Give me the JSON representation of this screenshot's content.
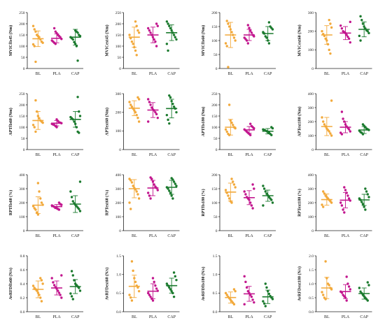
{
  "colors": {
    "BL": "#f2a93b",
    "PLA": "#c2168e",
    "CAP": "#1b7a2e"
  },
  "chart_data": [
    {
      "type": "scatter",
      "ylabel": "MVICfIs45 (Nm)",
      "ylim": [
        0,
        250
      ],
      "yticks": [
        "0",
        "50",
        "100",
        "150",
        "200",
        "250"
      ],
      "categories": [
        "BL",
        "PLA",
        "CAP"
      ],
      "series": [
        {
          "name": "BL",
          "mean": 133,
          "sd": 35,
          "values": [
            190,
            175,
            165,
            150,
            145,
            140,
            130,
            120,
            115,
            108,
            100,
            30
          ]
        },
        {
          "name": "PLA",
          "mean": 135,
          "sd": 20,
          "values": [
            180,
            165,
            158,
            150,
            145,
            140,
            132,
            125,
            120,
            115,
            110
          ]
        },
        {
          "name": "CAP",
          "mean": 140,
          "sd": 35,
          "values": [
            170,
            165,
            160,
            150,
            145,
            140,
            135,
            130,
            118,
            110,
            100,
            35
          ]
        }
      ]
    },
    {
      "type": "scatter",
      "ylabel": "MVICext45 (Nm)",
      "ylim": [
        0,
        250
      ],
      "yticks": [
        "0",
        "50",
        "100",
        "150",
        "200",
        "250"
      ],
      "categories": [
        "BL",
        "PLA",
        "CAP"
      ],
      "series": [
        {
          "name": "BL",
          "mean": 140,
          "sd": 45,
          "values": [
            210,
            190,
            170,
            160,
            150,
            135,
            120,
            110,
            95,
            80,
            60
          ]
        },
        {
          "name": "PLA",
          "mean": 150,
          "sd": 35,
          "values": [
            200,
            190,
            180,
            170,
            160,
            150,
            140,
            130,
            120,
            100
          ]
        },
        {
          "name": "CAP",
          "mean": 160,
          "sd": 35,
          "values": [
            210,
            200,
            190,
            180,
            170,
            160,
            150,
            140,
            130,
            110,
            80
          ]
        }
      ]
    },
    {
      "type": "scatter",
      "ylabel": "MVICfIs60 (Nm)",
      "ylim": [
        0,
        200
      ],
      "yticks": [
        "0",
        "50",
        "100",
        "150",
        "200"
      ],
      "categories": [
        "BL",
        "PLA",
        "CAP"
      ],
      "series": [
        {
          "name": "BL",
          "mean": 120,
          "sd": 45,
          "values": [
            170,
            160,
            150,
            140,
            130,
            120,
            110,
            100,
            90,
            80,
            5
          ]
        },
        {
          "name": "PLA",
          "mean": 120,
          "sd": 20,
          "values": [
            155,
            145,
            135,
            128,
            120,
            115,
            110,
            105,
            100,
            90
          ]
        },
        {
          "name": "CAP",
          "mean": 125,
          "sd": 25,
          "values": [
            165,
            150,
            145,
            140,
            130,
            125,
            115,
            110,
            100,
            90
          ]
        }
      ]
    },
    {
      "type": "scatter",
      "ylabel": "MVICext60 (Nm)",
      "ylim": [
        0,
        300
      ],
      "yticks": [
        "0",
        "100",
        "200",
        "300"
      ],
      "categories": [
        "BL",
        "PLA",
        "CAP"
      ],
      "series": [
        {
          "name": "BL",
          "mean": 180,
          "sd": 50,
          "values": [
            260,
            240,
            220,
            200,
            185,
            175,
            160,
            150,
            130,
            100,
            80
          ]
        },
        {
          "name": "PLA",
          "mean": 190,
          "sd": 35,
          "values": [
            250,
            230,
            215,
            200,
            195,
            190,
            180,
            170,
            160,
            140
          ]
        },
        {
          "name": "CAP",
          "mean": 210,
          "sd": 40,
          "values": [
            280,
            260,
            240,
            225,
            215,
            205,
            200,
            190,
            175,
            150
          ]
        }
      ]
    },
    {
      "type": "scatter",
      "ylabel": "APTfIs60 (Nm)",
      "ylim": [
        0,
        250
      ],
      "yticks": [
        "0",
        "50",
        "100",
        "150",
        "200",
        "250"
      ],
      "categories": [
        "BL",
        "PLA",
        "CAP"
      ],
      "series": [
        {
          "name": "BL",
          "mean": 130,
          "sd": 40,
          "values": [
            220,
            170,
            150,
            140,
            130,
            125,
            120,
            110,
            100,
            80
          ]
        },
        {
          "name": "PLA",
          "mean": 118,
          "sd": 12,
          "values": [
            135,
            128,
            122,
            120,
            118,
            115,
            112,
            110,
            105,
            100
          ]
        },
        {
          "name": "CAP",
          "mean": 135,
          "sd": 35,
          "values": [
            235,
            170,
            150,
            145,
            140,
            135,
            125,
            115,
            100,
            80,
            75
          ]
        }
      ]
    },
    {
      "type": "scatter",
      "ylabel": "APText60 (Nm)",
      "ylim": [
        0,
        300
      ],
      "yticks": [
        "0",
        "100",
        "200",
        "300"
      ],
      "categories": [
        "BL",
        "PLA",
        "CAP"
      ],
      "series": [
        {
          "name": "BL",
          "mean": 222,
          "sd": 40,
          "values": [
            280,
            270,
            255,
            240,
            230,
            220,
            210,
            200,
            185,
            170,
            150
          ]
        },
        {
          "name": "PLA",
          "mean": 212,
          "sd": 40,
          "values": [
            270,
            255,
            240,
            225,
            215,
            210,
            200,
            190,
            170,
            150
          ]
        },
        {
          "name": "CAP",
          "mean": 220,
          "sd": 50,
          "values": [
            290,
            280,
            260,
            245,
            230,
            220,
            200,
            185,
            160,
            140
          ]
        }
      ]
    },
    {
      "type": "scatter",
      "ylabel": "APTfIs180 (Nm)",
      "ylim": [
        0,
        250
      ],
      "yticks": [
        "0",
        "50",
        "100",
        "150",
        "200",
        "250"
      ],
      "categories": [
        "BL",
        "PLA",
        "CAP"
      ],
      "series": [
        {
          "name": "BL",
          "mean": 100,
          "sd": 35,
          "values": [
            200,
            130,
            120,
            110,
            100,
            95,
            90,
            80,
            70,
            65
          ]
        },
        {
          "name": "PLA",
          "mean": 88,
          "sd": 15,
          "values": [
            115,
            105,
            100,
            95,
            90,
            85,
            80,
            75,
            70,
            65
          ]
        },
        {
          "name": "CAP",
          "mean": 82,
          "sd": 12,
          "values": [
            100,
            95,
            90,
            88,
            85,
            82,
            78,
            75,
            70,
            65
          ]
        }
      ]
    },
    {
      "type": "scatter",
      "ylabel": "APText180 (Nm)",
      "ylim": [
        0,
        400
      ],
      "yticks": [
        "0",
        "100",
        "200",
        "300",
        "400"
      ],
      "categories": [
        "BL",
        "PLA",
        "CAP"
      ],
      "series": [
        {
          "name": "BL",
          "mean": 165,
          "sd": 65,
          "values": [
            350,
            230,
            200,
            180,
            165,
            150,
            140,
            130,
            115,
            100
          ]
        },
        {
          "name": "PLA",
          "mean": 160,
          "sd": 40,
          "values": [
            270,
            220,
            200,
            180,
            165,
            155,
            145,
            130,
            120,
            110
          ]
        },
        {
          "name": "CAP",
          "mean": 140,
          "sd": 25,
          "values": [
            180,
            170,
            160,
            150,
            145,
            140,
            135,
            125,
            120,
            110
          ]
        }
      ]
    },
    {
      "type": "scatter",
      "ylabel": "RPTfIs60 (%)",
      "ylim": [
        0,
        400
      ],
      "yticks": [
        "0",
        "100",
        "200",
        "300",
        "400"
      ],
      "categories": [
        "BL",
        "PLA",
        "CAP"
      ],
      "series": [
        {
          "name": "BL",
          "mean": 182,
          "sd": 60,
          "values": [
            340,
            280,
            230,
            200,
            185,
            175,
            160,
            150,
            130,
            115
          ]
        },
        {
          "name": "PLA",
          "mean": 172,
          "sd": 15,
          "values": [
            200,
            190,
            185,
            180,
            175,
            170,
            165,
            160,
            155,
            150
          ]
        },
        {
          "name": "CAP",
          "mean": 190,
          "sd": 60,
          "values": [
            350,
            280,
            240,
            210,
            195,
            185,
            175,
            165,
            155,
            140
          ]
        }
      ]
    },
    {
      "type": "scatter",
      "ylabel": "RPText60 (%)",
      "ylim": [
        0,
        400
      ],
      "yticks": [
        "0",
        "100",
        "200",
        "300",
        "400"
      ],
      "categories": [
        "BL",
        "PLA",
        "CAP"
      ],
      "series": [
        {
          "name": "BL",
          "mean": 300,
          "sd": 65,
          "values": [
            370,
            360,
            345,
            320,
            305,
            295,
            280,
            260,
            230,
            200,
            155
          ]
        },
        {
          "name": "PLA",
          "mean": 305,
          "sd": 55,
          "values": [
            380,
            370,
            350,
            330,
            315,
            305,
            290,
            270,
            250,
            230
          ]
        },
        {
          "name": "CAP",
          "mean": 310,
          "sd": 50,
          "values": [
            375,
            365,
            350,
            335,
            320,
            310,
            300,
            285,
            270,
            250,
            230
          ]
        }
      ]
    },
    {
      "type": "scatter",
      "ylabel": "RPTfIs180 (%)",
      "ylim": [
        0,
        200
      ],
      "yticks": [
        "0",
        "50",
        "100",
        "150",
        "200"
      ],
      "categories": [
        "BL",
        "PLA",
        "CAP"
      ],
      "series": [
        {
          "name": "BL",
          "mean": 138,
          "sd": 32,
          "values": [
            185,
            175,
            165,
            155,
            145,
            135,
            125,
            115,
            105,
            100
          ]
        },
        {
          "name": "PLA",
          "mean": 118,
          "sd": 25,
          "values": [
            165,
            150,
            140,
            130,
            120,
            115,
            110,
            100,
            90,
            80
          ]
        },
        {
          "name": "CAP",
          "mean": 125,
          "sd": 20,
          "values": [
            160,
            150,
            140,
            132,
            126,
            120,
            115,
            110,
            100,
            90
          ]
        }
      ]
    },
    {
      "type": "scatter",
      "ylabel": "RPText180 (%)",
      "ylim": [
        0,
        400
      ],
      "yticks": [
        "0",
        "100",
        "200",
        "300",
        "400"
      ],
      "categories": [
        "BL",
        "PLA",
        "CAP"
      ],
      "series": [
        {
          "name": "BL",
          "mean": 222,
          "sd": 40,
          "values": [
            280,
            265,
            250,
            240,
            230,
            220,
            210,
            200,
            185,
            170
          ]
        },
        {
          "name": "PLA",
          "mean": 218,
          "sd": 55,
          "values": [
            310,
            290,
            270,
            250,
            230,
            215,
            200,
            180,
            150,
            130
          ]
        },
        {
          "name": "CAP",
          "mean": 220,
          "sd": 40,
          "values": [
            300,
            280,
            260,
            240,
            230,
            220,
            205,
            190,
            170,
            150
          ]
        }
      ]
    },
    {
      "type": "scatter",
      "ylabel": "AvRFDfIs60 (N/s)",
      "ylim": [
        0,
        0.8
      ],
      "yticks": [
        "0.0",
        "0.2",
        "0.4",
        "0.6",
        "0.8"
      ],
      "categories": [
        "BL",
        "PLA",
        "CAP"
      ],
      "series": [
        {
          "name": "BL",
          "mean": 0.32,
          "sd": 0.12,
          "values": [
            0.48,
            0.45,
            0.4,
            0.37,
            0.34,
            0.32,
            0.3,
            0.27,
            0.24,
            0.2,
            0.15
          ]
        },
        {
          "name": "PLA",
          "mean": 0.34,
          "sd": 0.1,
          "values": [
            0.52,
            0.48,
            0.42,
            0.38,
            0.35,
            0.33,
            0.3,
            0.27,
            0.24,
            0.2
          ]
        },
        {
          "name": "CAP",
          "mean": 0.36,
          "sd": 0.1,
          "values": [
            0.58,
            0.52,
            0.45,
            0.4,
            0.38,
            0.36,
            0.34,
            0.3,
            0.26,
            0.22,
            0.18
          ]
        }
      ]
    },
    {
      "type": "scatter",
      "ylabel": "AvRFDext60 (N/s)",
      "ylim": [
        0,
        1.5
      ],
      "yticks": [
        "0.0",
        "0.5",
        "1.0",
        "1.5"
      ],
      "categories": [
        "BL",
        "PLA",
        "CAP"
      ],
      "series": [
        {
          "name": "BL",
          "mean": 0.68,
          "sd": 0.3,
          "values": [
            1.35,
            1.1,
            0.9,
            0.8,
            0.7,
            0.65,
            0.55,
            0.45,
            0.38,
            0.3
          ]
        },
        {
          "name": "PLA",
          "mean": 0.55,
          "sd": 0.2,
          "values": [
            0.9,
            0.8,
            0.7,
            0.62,
            0.56,
            0.5,
            0.45,
            0.4,
            0.35,
            0.3
          ]
        },
        {
          "name": "CAP",
          "mean": 0.7,
          "sd": 0.2,
          "values": [
            1.05,
            0.95,
            0.85,
            0.75,
            0.7,
            0.65,
            0.6,
            0.55,
            0.5,
            0.4
          ]
        }
      ]
    },
    {
      "type": "scatter",
      "ylabel": "AvRFDfIs180 (N/s)",
      "ylim": [
        0,
        1.5
      ],
      "yticks": [
        "0.0",
        "0.5",
        "1.0",
        "1.5"
      ],
      "categories": [
        "BL",
        "PLA",
        "CAP"
      ],
      "series": [
        {
          "name": "BL",
          "mean": 0.38,
          "sd": 0.15,
          "values": [
            0.6,
            0.55,
            0.5,
            0.45,
            0.4,
            0.36,
            0.32,
            0.28,
            0.24,
            0.2
          ]
        },
        {
          "name": "PLA",
          "mean": 0.48,
          "sd": 0.2,
          "values": [
            0.95,
            0.8,
            0.65,
            0.55,
            0.5,
            0.45,
            0.4,
            0.32,
            0.25,
            0.2
          ]
        },
        {
          "name": "CAP",
          "mean": 0.4,
          "sd": 0.18,
          "values": [
            0.75,
            0.65,
            0.55,
            0.48,
            0.42,
            0.38,
            0.34,
            0.28,
            0.22,
            0.15
          ]
        }
      ]
    },
    {
      "type": "scatter",
      "ylabel": "AvRFDext180 (N/s)",
      "ylim": [
        0,
        2.0
      ],
      "yticks": [
        "0.0",
        "0.5",
        "1.0",
        "1.5",
        "2.0"
      ],
      "categories": [
        "BL",
        "PLA",
        "CAP"
      ],
      "series": [
        {
          "name": "BL",
          "mean": 0.85,
          "sd": 0.38,
          "values": [
            1.8,
            1.2,
            1.0,
            0.95,
            0.85,
            0.8,
            0.7,
            0.6,
            0.5,
            0.45
          ]
        },
        {
          "name": "PLA",
          "mean": 0.72,
          "sd": 0.25,
          "values": [
            1.25,
            1.0,
            0.9,
            0.8,
            0.72,
            0.68,
            0.6,
            0.55,
            0.5,
            0.4
          ]
        },
        {
          "name": "CAP",
          "mean": 0.65,
          "sd": 0.2,
          "values": [
            1.05,
            0.95,
            0.85,
            0.72,
            0.66,
            0.6,
            0.55,
            0.5,
            0.45,
            0.4
          ]
        }
      ]
    }
  ]
}
